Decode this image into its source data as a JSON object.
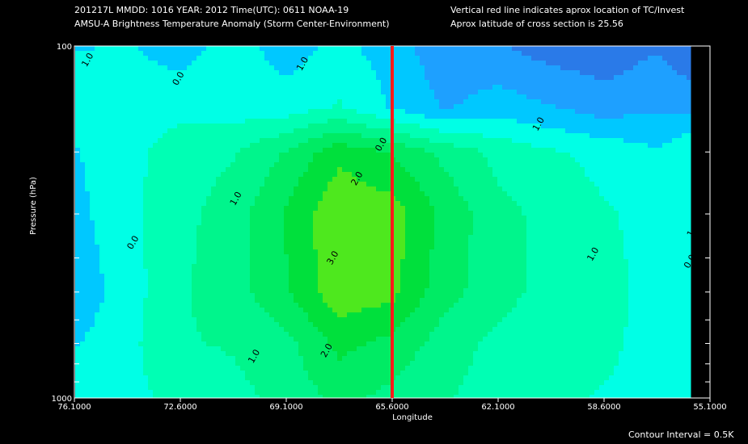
{
  "header": {
    "line1": "201217L  MMDD: 1016 YEAR: 2012 Time(UTC): 0611 NOAA-19",
    "line2": "AMSU-A Brightness Temperature Anomaly (Storm Center-Environment)",
    "line3": "Vertical red line indicates aprox location of TC/Invest",
    "line4": "Aprox latitude of cross section is 25.56"
  },
  "footer": {
    "contour_interval": "Contour Interval = 0.5K"
  },
  "chart_data": {
    "type": "heatmap",
    "title": "AMSU-A Brightness Temperature Anomaly (Storm Center-Environment)",
    "xlabel": "Longitude",
    "ylabel": "Pressure (hPa)",
    "x_tick_labels": [
      "76.1000",
      "72.6000",
      "69.1000",
      "65.6000",
      "62.1000",
      "58.6000",
      "55.1000"
    ],
    "x_ticks": [
      76.1,
      72.6,
      69.1,
      65.6,
      62.1,
      58.6,
      55.1
    ],
    "xlim": [
      76.1,
      55.1
    ],
    "y_tick_labels": [
      "100",
      "1000"
    ],
    "ylim": [
      100,
      1000
    ],
    "y_scale": "log",
    "storm_center_longitude": 65.6,
    "contour_interval": 0.5,
    "contour_labels": [
      {
        "text": "1.0",
        "lon": 75.7,
        "p": 115
      },
      {
        "text": "0.0",
        "lon": 72.7,
        "p": 130
      },
      {
        "text": "1.0",
        "lon": 68.6,
        "p": 118
      },
      {
        "text": "0.0",
        "lon": 66.0,
        "p": 200
      },
      {
        "text": "1.0",
        "lon": 60.8,
        "p": 175
      },
      {
        "text": "2.0",
        "lon": 66.8,
        "p": 250
      },
      {
        "text": "1.0",
        "lon": 70.8,
        "p": 285
      },
      {
        "text": "0.0",
        "lon": 74.2,
        "p": 380
      },
      {
        "text": "3.0",
        "lon": 67.6,
        "p": 420
      },
      {
        "text": "1.0",
        "lon": 59.0,
        "p": 410
      },
      {
        "text": "1.0",
        "lon": 55.7,
        "p": 350
      },
      {
        "text": "0.0",
        "lon": 55.8,
        "p": 430
      },
      {
        "text": "2.0",
        "lon": 67.8,
        "p": 770
      },
      {
        "text": "1.0",
        "lon": 70.2,
        "p": 800
      }
    ],
    "anomaly_grid": {
      "lon": [
        76.1,
        74.35,
        72.6,
        70.85,
        69.1,
        67.35,
        65.6,
        63.85,
        62.1,
        60.35,
        58.6,
        56.85,
        55.1
      ],
      "p": [
        100,
        150,
        200,
        300,
        500,
        700,
        1000
      ],
      "values": [
        [
          0.2,
          0.3,
          0.0,
          0.5,
          0.0,
          0.4,
          0.0,
          -0.6,
          -0.7,
          -1.0,
          -1.1,
          -0.8,
          -1.5
        ],
        [
          0.6,
          0.5,
          0.6,
          0.5,
          0.5,
          0.8,
          0.2,
          -0.3,
          0.0,
          -0.2,
          -0.5,
          -0.3,
          -0.4
        ],
        [
          0.2,
          0.6,
          1.0,
          1.2,
          1.8,
          2.6,
          2.2,
          1.6,
          1.1,
          0.8,
          0.6,
          0.3,
          0.9
        ],
        [
          0.1,
          0.6,
          1.1,
          1.5,
          2.3,
          3.2,
          3.0,
          2.1,
          1.4,
          1.1,
          0.8,
          0.6,
          0.8
        ],
        [
          -0.1,
          0.5,
          1.2,
          1.5,
          2.2,
          3.1,
          2.9,
          1.9,
          1.5,
          1.0,
          0.9,
          0.6,
          0.5
        ],
        [
          0.2,
          0.6,
          1.2,
          1.3,
          1.6,
          2.4,
          2.1,
          1.5,
          1.1,
          0.8,
          0.9,
          0.5,
          0.4
        ],
        [
          0.5,
          0.6,
          0.9,
          1.1,
          1.4,
          1.9,
          1.6,
          1.3,
          1.0,
          0.9,
          0.7,
          0.5,
          0.4
        ]
      ]
    }
  }
}
